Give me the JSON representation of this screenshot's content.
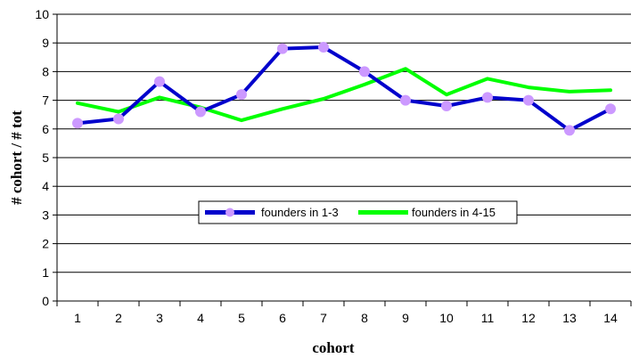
{
  "chart_data": {
    "type": "line",
    "title": "",
    "xlabel": "cohort",
    "ylabel": "# cohort / # tot",
    "x": [
      1,
      2,
      3,
      4,
      5,
      6,
      7,
      8,
      9,
      10,
      11,
      12,
      13,
      14
    ],
    "ylim": [
      0,
      10
    ],
    "yticks": [
      0,
      1,
      2,
      3,
      4,
      5,
      6,
      7,
      8,
      9,
      10
    ],
    "grid": "horizontal",
    "legend_position": "center",
    "series": [
      {
        "name": "founders in 1-3",
        "color": "#0000cc",
        "marker_color": "#cc99ff",
        "marker": "circle",
        "values": [
          6.2,
          6.35,
          7.65,
          6.6,
          7.2,
          8.8,
          8.85,
          8.0,
          7.0,
          6.8,
          7.1,
          7.0,
          5.95,
          6.7
        ]
      },
      {
        "name": "founders in 4-15",
        "color": "#00ff00",
        "marker": "none",
        "values": [
          6.9,
          6.6,
          7.1,
          6.75,
          6.3,
          6.7,
          7.05,
          7.55,
          8.1,
          7.2,
          7.75,
          7.45,
          7.3,
          7.35
        ]
      }
    ]
  }
}
